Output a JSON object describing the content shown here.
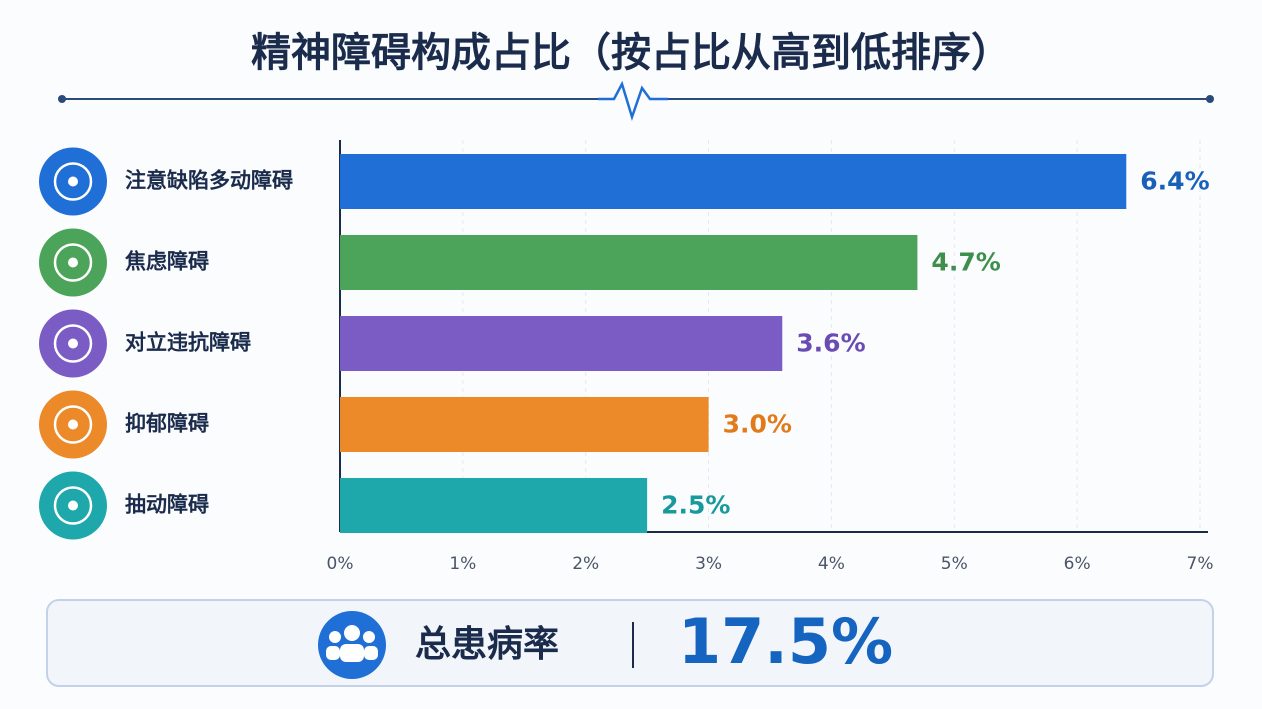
{
  "chart_data": {
    "type": "barh",
    "title": "精神障碍构成占比（按占比从高到低排序）",
    "categories": [
      "注意缺陷多动障碍",
      "焦虑障碍",
      "对立违抗障碍",
      "抑郁障碍",
      "抽动障碍"
    ],
    "values": [
      6.4,
      4.7,
      3.6,
      3.0,
      2.5
    ],
    "value_labels": [
      "6.4%",
      "4.7%",
      "3.6%",
      "3.0%",
      "2.5%"
    ],
    "colors": [
      "#1f6fd6",
      "#4ca45a",
      "#7b5cc4",
      "#ec8a2a",
      "#1fa8ac"
    ],
    "label_colors": [
      "#1a5fb8",
      "#3f8f4c",
      "#6a4bb3",
      "#e07a1a",
      "#17999d"
    ],
    "xlim": [
      0,
      7
    ],
    "xticks": [
      {
        "value": 0,
        "label": "0%"
      },
      {
        "value": 1,
        "label": "1%"
      },
      {
        "value": 2,
        "label": "2%"
      },
      {
        "value": 3,
        "label": "3%"
      },
      {
        "value": 4,
        "label": "4%"
      },
      {
        "value": 5,
        "label": "5%"
      },
      {
        "value": 6,
        "label": "6%"
      },
      {
        "value": 7,
        "label": "7%"
      }
    ],
    "grid": true,
    "summary": {
      "label": "总患病率",
      "value": "17.5%"
    }
  }
}
